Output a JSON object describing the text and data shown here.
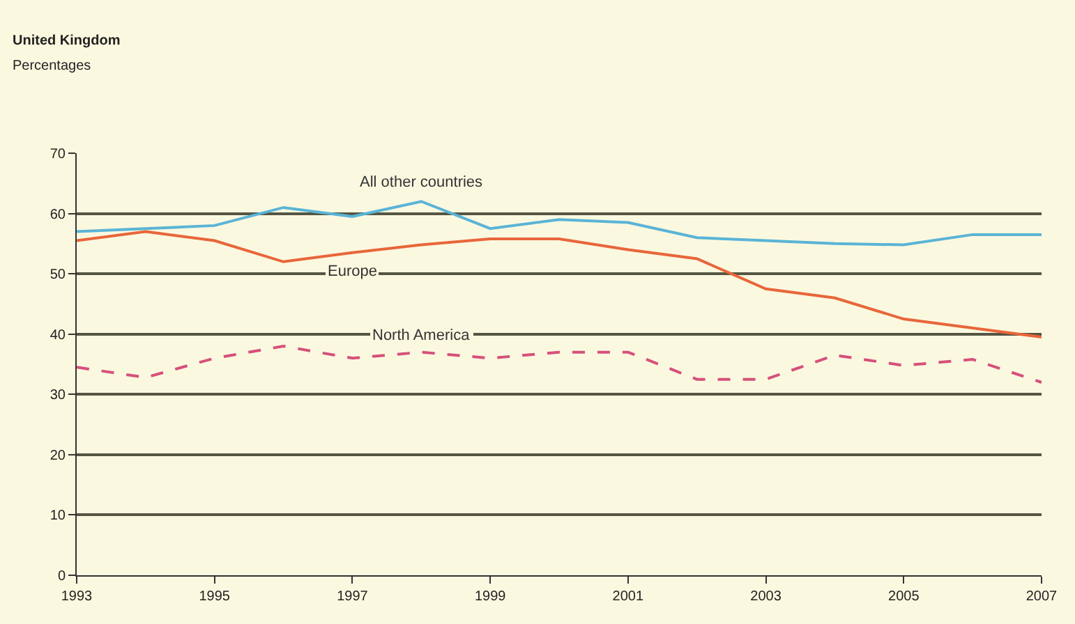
{
  "chart_data": {
    "type": "line",
    "annotations": [
      "United Kingdom",
      "Percentages"
    ],
    "x": [
      1993,
      1994,
      1995,
      1996,
      1997,
      1998,
      1999,
      2000,
      2001,
      2002,
      2003,
      2004,
      2005,
      2006,
      2007
    ],
    "series": [
      {
        "name": "All other countries",
        "color": "#5ab4d6",
        "line_style": "solid",
        "values": [
          57,
          57.5,
          58,
          61,
          59.5,
          62,
          57.5,
          59,
          58.5,
          56,
          55.5,
          55,
          54.8,
          56.5,
          56.5
        ]
      },
      {
        "name": "Europe",
        "color": "#e8663a",
        "line_style": "solid",
        "values": [
          55.5,
          57,
          55.5,
          52,
          53.5,
          54.8,
          55.8,
          55.8,
          54,
          52.5,
          47.5,
          46,
          42.5,
          41,
          39.5
        ]
      },
      {
        "name": "North America",
        "color": "#d6507a",
        "line_style": "dashed",
        "values": [
          34.5,
          32.8,
          36,
          38,
          36,
          37,
          36,
          37,
          37,
          32.5,
          32.5,
          36.5,
          34.8,
          35.8,
          32
        ]
      }
    ],
    "xlim": [
      1993,
      2007
    ],
    "xticks": [
      1993,
      1995,
      1997,
      1999,
      2001,
      2003,
      2005,
      2007
    ],
    "ylim": [
      0,
      70
    ],
    "yticks": [
      0,
      10,
      20,
      30,
      40,
      50,
      60,
      70
    ],
    "grid": "y",
    "legend": false,
    "marker": "none"
  }
}
